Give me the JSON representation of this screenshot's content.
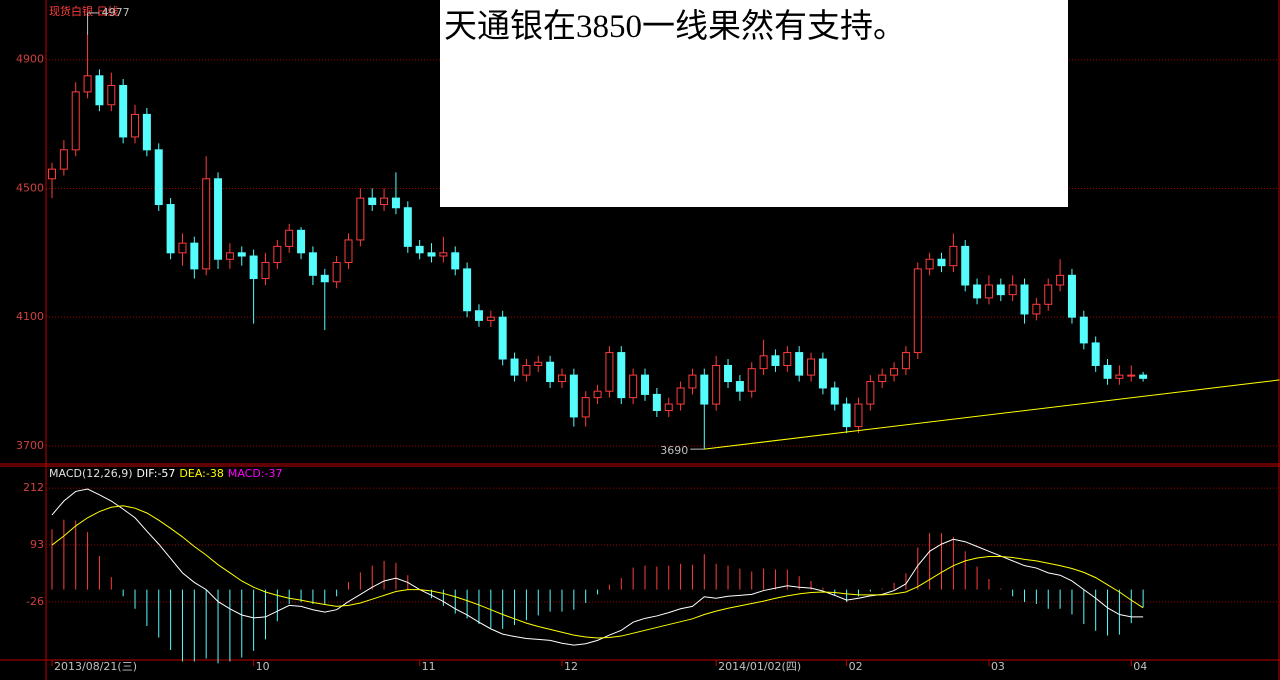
{
  "chart_data": [
    {
      "type": "candlestick",
      "title": "现货白银 日线",
      "categories": [
        "2013/08/21(三)",
        null,
        null,
        null,
        null,
        null,
        null,
        null,
        null,
        null,
        null,
        null,
        null,
        null,
        null,
        null,
        null,
        "10",
        null,
        null,
        null,
        null,
        null,
        null,
        null,
        null,
        null,
        null,
        null,
        null,
        null,
        "11",
        null,
        null,
        null,
        null,
        null,
        null,
        null,
        null,
        null,
        null,
        null,
        "12",
        null,
        null,
        null,
        null,
        null,
        null,
        null,
        null,
        null,
        null,
        null,
        null,
        "2014/01/02(四)",
        null,
        null,
        null,
        null,
        null,
        null,
        null,
        null,
        null,
        null,
        "02",
        null,
        null,
        null,
        null,
        null,
        null,
        null,
        null,
        null,
        null,
        null,
        "03",
        null,
        null,
        null,
        null,
        null,
        null,
        null,
        null,
        null,
        null,
        null,
        "04",
        null
      ],
      "ohlc": [
        [
          4530,
          4580,
          4470,
          4560
        ],
        [
          4560,
          4650,
          4540,
          4620
        ],
        [
          4620,
          4830,
          4600,
          4800
        ],
        [
          4800,
          4977,
          4780,
          4850
        ],
        [
          4850,
          4870,
          4740,
          4760
        ],
        [
          4760,
          4860,
          4740,
          4820
        ],
        [
          4820,
          4840,
          4640,
          4660
        ],
        [
          4660,
          4760,
          4640,
          4730
        ],
        [
          4730,
          4750,
          4600,
          4620
        ],
        [
          4620,
          4640,
          4430,
          4450
        ],
        [
          4450,
          4470,
          4280,
          4300
        ],
        [
          4300,
          4360,
          4260,
          4330
        ],
        [
          4330,
          4350,
          4220,
          4250
        ],
        [
          4250,
          4600,
          4230,
          4530
        ],
        [
          4530,
          4550,
          4250,
          4280
        ],
        [
          4280,
          4330,
          4250,
          4300
        ],
        [
          4300,
          4320,
          4260,
          4290
        ],
        [
          4290,
          4310,
          4080,
          4220
        ],
        [
          4220,
          4300,
          4200,
          4270
        ],
        [
          4270,
          4340,
          4250,
          4320
        ],
        [
          4320,
          4390,
          4300,
          4370
        ],
        [
          4370,
          4380,
          4280,
          4300
        ],
        [
          4300,
          4320,
          4200,
          4230
        ],
        [
          4230,
          4250,
          4060,
          4210
        ],
        [
          4210,
          4290,
          4190,
          4270
        ],
        [
          4270,
          4360,
          4250,
          4340
        ],
        [
          4340,
          4500,
          4320,
          4470
        ],
        [
          4470,
          4500,
          4430,
          4450
        ],
        [
          4450,
          4500,
          4430,
          4470
        ],
        [
          4470,
          4550,
          4420,
          4440
        ],
        [
          4440,
          4460,
          4300,
          4320
        ],
        [
          4320,
          4340,
          4280,
          4300
        ],
        [
          4300,
          4330,
          4270,
          4290
        ],
        [
          4290,
          4350,
          4270,
          4300
        ],
        [
          4300,
          4320,
          4230,
          4250
        ],
        [
          4250,
          4270,
          4100,
          4120
        ],
        [
          4120,
          4140,
          4070,
          4090
        ],
        [
          4090,
          4120,
          4070,
          4100
        ],
        [
          4100,
          4120,
          3950,
          3970
        ],
        [
          3970,
          3990,
          3900,
          3920
        ],
        [
          3920,
          3970,
          3900,
          3950
        ],
        [
          3950,
          3980,
          3930,
          3960
        ],
        [
          3960,
          3980,
          3880,
          3900
        ],
        [
          3900,
          3940,
          3880,
          3920
        ],
        [
          3920,
          3940,
          3760,
          3790
        ],
        [
          3790,
          3870,
          3760,
          3850
        ],
        [
          3850,
          3890,
          3830,
          3870
        ],
        [
          3870,
          4010,
          3850,
          3990
        ],
        [
          3990,
          4010,
          3830,
          3850
        ],
        [
          3850,
          3940,
          3830,
          3920
        ],
        [
          3920,
          3940,
          3840,
          3860
        ],
        [
          3860,
          3880,
          3790,
          3810
        ],
        [
          3810,
          3850,
          3790,
          3830
        ],
        [
          3830,
          3900,
          3810,
          3880
        ],
        [
          3880,
          3940,
          3860,
          3920
        ],
        [
          3920,
          3940,
          3690,
          3830
        ],
        [
          3830,
          3980,
          3810,
          3950
        ],
        [
          3950,
          3970,
          3880,
          3900
        ],
        [
          3900,
          3920,
          3840,
          3870
        ],
        [
          3870,
          3960,
          3850,
          3940
        ],
        [
          3940,
          4030,
          3920,
          3980
        ],
        [
          3980,
          4000,
          3930,
          3950
        ],
        [
          3950,
          4010,
          3930,
          3990
        ],
        [
          3990,
          4010,
          3900,
          3920
        ],
        [
          3920,
          3990,
          3900,
          3970
        ],
        [
          3970,
          3990,
          3860,
          3880
        ],
        [
          3880,
          3900,
          3810,
          3830
        ],
        [
          3830,
          3850,
          3740,
          3760
        ],
        [
          3760,
          3850,
          3740,
          3830
        ],
        [
          3830,
          3920,
          3810,
          3900
        ],
        [
          3900,
          3940,
          3880,
          3920
        ],
        [
          3920,
          3960,
          3900,
          3940
        ],
        [
          3940,
          4010,
          3920,
          3990
        ],
        [
          3990,
          4270,
          3970,
          4250
        ],
        [
          4250,
          4300,
          4230,
          4280
        ],
        [
          4280,
          4300,
          4240,
          4260
        ],
        [
          4260,
          4360,
          4240,
          4320
        ],
        [
          4320,
          4340,
          4180,
          4200
        ],
        [
          4200,
          4220,
          4140,
          4160
        ],
        [
          4160,
          4230,
          4140,
          4200
        ],
        [
          4200,
          4220,
          4150,
          4170
        ],
        [
          4170,
          4230,
          4150,
          4200
        ],
        [
          4200,
          4220,
          4080,
          4110
        ],
        [
          4110,
          4160,
          4090,
          4140
        ],
        [
          4140,
          4220,
          4120,
          4200
        ],
        [
          4200,
          4280,
          4180,
          4230
        ],
        [
          4230,
          4250,
          4080,
          4100
        ],
        [
          4100,
          4120,
          4000,
          4020
        ],
        [
          4020,
          4040,
          3930,
          3950
        ],
        [
          3950,
          3970,
          3890,
          3910
        ],
        [
          3910,
          3950,
          3890,
          3920
        ],
        [
          3920,
          3950,
          3900,
          3920
        ],
        [
          3920,
          3930,
          3900,
          3910
        ]
      ],
      "ylim": [
        3650,
        5070
      ],
      "yticks": [
        3700,
        4100,
        4500,
        4900
      ],
      "grid": true,
      "up_color": "#ff3c3c",
      "down_color": "#54fcfc",
      "trend_line": {
        "x": [
          55,
          103.5
        ],
        "y": [
          3690,
          3905
        ],
        "color": "#ffff00"
      },
      "note": "天通银在3850一线果然有支持。"
    },
    {
      "type": "macd",
      "title": "MACD(12,26,9)",
      "ylim": [
        -147,
        256
      ],
      "yticks": [
        -26,
        93,
        212
      ],
      "grid": true,
      "series": [
        {
          "name": "DIF:-57",
          "color": "#ffffff",
          "values": [
            156,
            185,
            205,
            210,
            198,
            185,
            168,
            150,
            122,
            95,
            65,
            35,
            15,
            0,
            -25,
            -40,
            -53,
            -59,
            -57,
            -45,
            -33,
            -35,
            -42,
            -47,
            -42,
            -25,
            -10,
            5,
            18,
            24,
            15,
            0,
            -12,
            -25,
            -40,
            -53,
            -68,
            -82,
            -93,
            -98,
            -102,
            -104,
            -106,
            -112,
            -116,
            -113,
            -106,
            -95,
            -85,
            -68,
            -60,
            -55,
            -48,
            -40,
            -35,
            -15,
            -18,
            -14,
            -12,
            -10,
            -2,
            3,
            8,
            5,
            3,
            -3,
            -12,
            -22,
            -18,
            -13,
            -10,
            -2,
            12,
            50,
            80,
            95,
            105,
            100,
            90,
            80,
            70,
            60,
            50,
            45,
            35,
            30,
            18,
            0,
            -18,
            -38,
            -52,
            -57,
            -57
          ]
        },
        {
          "name": "DEA:-38",
          "color": "#ffff00",
          "values": [
            93,
            112,
            133,
            150,
            163,
            172,
            175,
            170,
            160,
            145,
            128,
            110,
            90,
            72,
            52,
            35,
            18,
            5,
            -5,
            -12,
            -18,
            -22,
            -27,
            -31,
            -35,
            -33,
            -28,
            -20,
            -12,
            -4,
            0,
            0,
            -3,
            -8,
            -15,
            -23,
            -32,
            -42,
            -52,
            -61,
            -70,
            -77,
            -83,
            -89,
            -95,
            -99,
            -101,
            -100,
            -97,
            -91,
            -85,
            -79,
            -73,
            -67,
            -61,
            -52,
            -45,
            -39,
            -34,
            -29,
            -24,
            -18,
            -13,
            -9,
            -6,
            -5,
            -6,
            -9,
            -11,
            -11,
            -11,
            -9,
            -5,
            6,
            21,
            36,
            50,
            60,
            66,
            69,
            69,
            67,
            63,
            60,
            55,
            50,
            44,
            36,
            25,
            10,
            -5,
            -22,
            -38
          ]
        },
        {
          "name": "MACD:-37",
          "color": "#ff00ff",
          "up_color": "#ff3c3c",
          "down_color": "#54fcfc",
          "values": [
            126,
            146,
            144,
            120,
            70,
            26,
            -14,
            -40,
            -76,
            -100,
            -126,
            -150,
            -150,
            -144,
            -154,
            -150,
            -142,
            -128,
            -104,
            -66,
            -30,
            -26,
            -30,
            -32,
            -14,
            16,
            36,
            50,
            60,
            56,
            30,
            0,
            -18,
            -34,
            -50,
            -60,
            -72,
            -80,
            -82,
            -74,
            -64,
            -54,
            -46,
            -46,
            -42,
            -28,
            -10,
            10,
            24,
            46,
            50,
            48,
            50,
            54,
            52,
            74,
            54,
            50,
            44,
            38,
            44,
            42,
            42,
            28,
            18,
            4,
            -12,
            -26,
            -14,
            -4,
            2,
            14,
            34,
            88,
            118,
            118,
            110,
            80,
            48,
            22,
            2,
            -14,
            -26,
            -30,
            -40,
            -40,
            -52,
            -72,
            -86,
            -96,
            -94,
            -70,
            -37
          ]
        }
      ]
    }
  ]
}
